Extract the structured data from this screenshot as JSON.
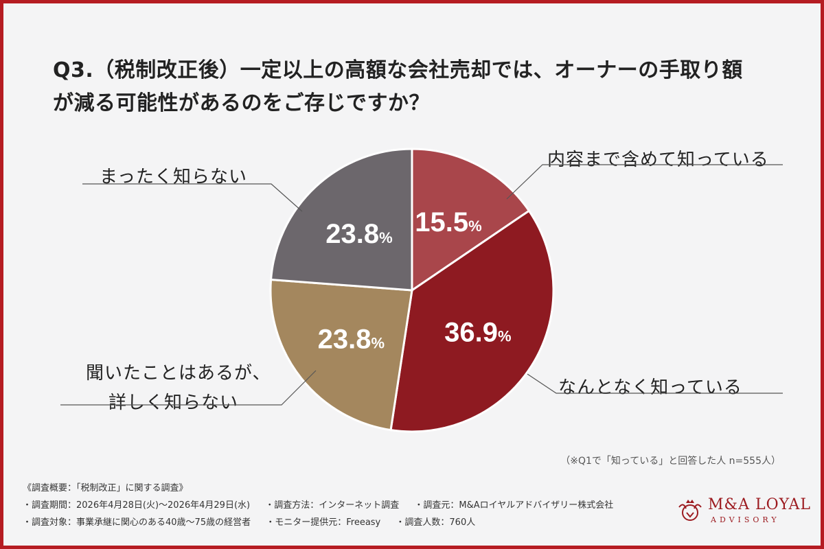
{
  "title_line1": "Q3.（税制改正後）一定以上の高額な会社売却では、オーナーの手取り額",
  "title_line2": "が減る可能性があるのをご存じですか？",
  "chart_data": {
    "type": "pie",
    "title": "Q3.（税制改正後）一定以上の高額な会社売却では、オーナーの手取り額が減る可能性があるのをご存じですか？",
    "slices": [
      {
        "label": "内容まで含めて知っている",
        "value": 15.5,
        "color": "#a9464b"
      },
      {
        "label": "なんとなく知っている",
        "value": 36.9,
        "color": "#8e1a21"
      },
      {
        "label_lines": [
          "聞いたことはあるが、",
          "詳しく知らない"
        ],
        "label": "聞いたことはあるが、詳しく知らない",
        "value": 23.8,
        "color": "#a4875e"
      },
      {
        "label": "まったく知らない",
        "value": 23.8,
        "color": "#6c676c"
      }
    ],
    "value_suffix": "%"
  },
  "note": "（※Q1で「知っている」と回答した人 n=555人）",
  "footer": {
    "heading": "《調査概要：「税制改正」に関する調査》",
    "row1": [
      "・調査期間：2026年4月28日(火)〜2026年4月29日(水)",
      "・調査方法：インターネット調査",
      "・調査元：M&Aロイヤルアドバイザリー株式会社"
    ],
    "row2": [
      "・調査対象：事業承継に関心のある40歳〜75歳の経営者",
      "・モニター提供元：Freeasy",
      "・調査人数：760人"
    ]
  },
  "logo": {
    "name": "M&A LOYAL",
    "sub": "ADVISORY"
  },
  "colors": {
    "border": "#b51c22",
    "background": "#f4f4f5",
    "brand": "#9c1b20"
  }
}
